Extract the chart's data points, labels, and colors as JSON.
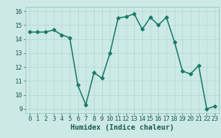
{
  "x": [
    0,
    1,
    2,
    3,
    4,
    5,
    6,
    7,
    8,
    9,
    10,
    11,
    12,
    13,
    14,
    15,
    16,
    17,
    18,
    19,
    20,
    21,
    22,
    23
  ],
  "y": [
    14.5,
    14.5,
    14.5,
    14.65,
    14.3,
    14.1,
    10.7,
    9.3,
    11.6,
    11.2,
    13.0,
    15.5,
    15.6,
    15.8,
    14.7,
    15.55,
    15.0,
    15.55,
    13.8,
    11.7,
    11.5,
    12.1,
    9.0,
    9.2
  ],
  "line_color": "#1a7a6a",
  "marker": "D",
  "marker_size": 2.5,
  "background_color": "#cce9e5",
  "grid_color": "#afd6d2",
  "xlabel": "Humidex (Indice chaleur)",
  "xlim": [
    -0.5,
    23.5
  ],
  "ylim": [
    8.7,
    16.3
  ],
  "yticks": [
    9,
    10,
    11,
    12,
    13,
    14,
    15,
    16
  ],
  "xticks": [
    0,
    1,
    2,
    3,
    4,
    5,
    6,
    7,
    8,
    9,
    10,
    11,
    12,
    13,
    14,
    15,
    16,
    17,
    18,
    19,
    20,
    21,
    22,
    23
  ],
  "tick_fontsize": 6.5,
  "xlabel_fontsize": 7.5,
  "linewidth": 1.2
}
